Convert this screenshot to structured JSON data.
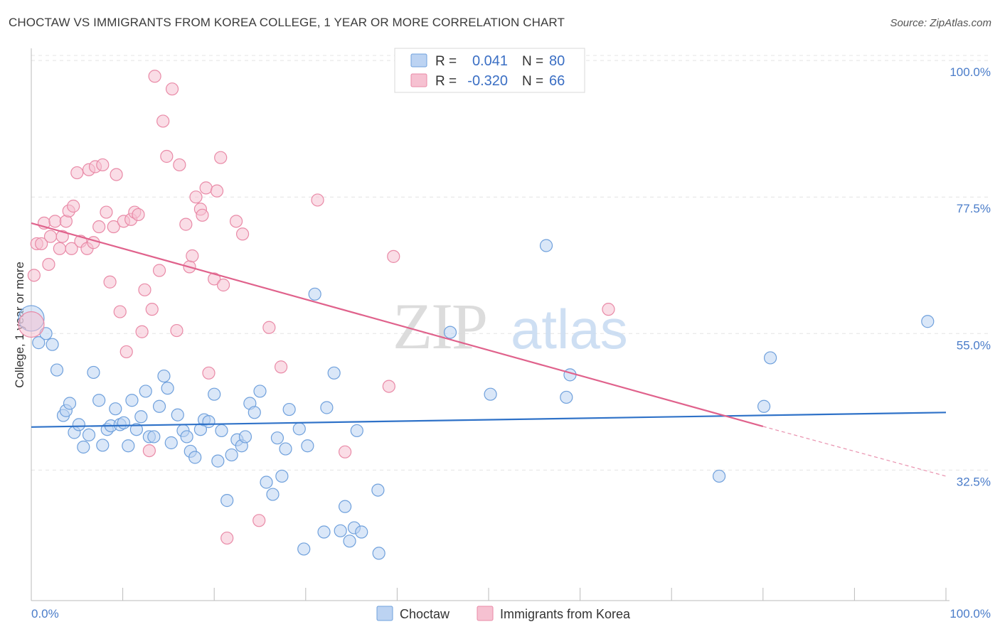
{
  "chart_data": {
    "type": "scatter",
    "title": "CHOCTAW VS IMMIGRANTS FROM KOREA COLLEGE, 1 YEAR OR MORE CORRELATION CHART",
    "source": "Source: ZipAtlas.com",
    "xlabel": "",
    "ylabel": "College, 1 year or more",
    "xlim": [
      0,
      100
    ],
    "ylim": [
      11,
      102
    ],
    "x_tick_labels": [
      "0.0%",
      "100.0%"
    ],
    "y_ticks": [
      {
        "value": 100.0,
        "label": "100.0%"
      },
      {
        "value": 77.5,
        "label": "77.5%"
      },
      {
        "value": 55.0,
        "label": "55.0%"
      },
      {
        "value": 32.5,
        "label": "32.5%"
      }
    ],
    "watermark": {
      "part1": "ZIP",
      "part2": "atlas"
    },
    "legend": {
      "r_label": "R =",
      "n_label": "N =",
      "entries": [
        {
          "r": "0.041",
          "n": "80"
        },
        {
          "r": "-0.320",
          "n": "66"
        }
      ]
    },
    "series": [
      {
        "name": "Choctaw",
        "color": "#6fa0dc",
        "fill": "#bcd3f2",
        "line_color": "#2f72c8",
        "trend": {
          "x0": 0,
          "y0": 39.6,
          "x1": 100,
          "y1": 42.0
        },
        "points": [
          [
            0,
            57.5
          ],
          [
            0.8,
            53.5
          ],
          [
            1.6,
            55.0
          ],
          [
            2.3,
            53.2
          ],
          [
            2.8,
            49.0
          ],
          [
            3.5,
            41.5
          ],
          [
            3.8,
            42.3
          ],
          [
            4.2,
            43.5
          ],
          [
            4.7,
            38.7
          ],
          [
            5.2,
            40.0
          ],
          [
            5.7,
            36.3
          ],
          [
            6.3,
            38.3
          ],
          [
            6.8,
            48.6
          ],
          [
            7.4,
            44.0
          ],
          [
            7.8,
            36.6
          ],
          [
            8.3,
            39.2
          ],
          [
            8.7,
            39.8
          ],
          [
            9.2,
            42.6
          ],
          [
            9.7,
            40.0
          ],
          [
            10.1,
            40.3
          ],
          [
            10.6,
            36.5
          ],
          [
            11.0,
            44.0
          ],
          [
            11.5,
            39.2
          ],
          [
            12.0,
            41.3
          ],
          [
            12.5,
            45.5
          ],
          [
            12.9,
            38.0
          ],
          [
            13.4,
            38.0
          ],
          [
            14.0,
            43.0
          ],
          [
            14.5,
            48.0
          ],
          [
            14.9,
            46.0
          ],
          [
            15.3,
            37.0
          ],
          [
            16.0,
            41.6
          ],
          [
            16.6,
            39.0
          ],
          [
            17.0,
            38.0
          ],
          [
            17.4,
            35.6
          ],
          [
            17.9,
            34.6
          ],
          [
            18.5,
            39.2
          ],
          [
            18.9,
            40.8
          ],
          [
            19.4,
            40.5
          ],
          [
            20.0,
            45.0
          ],
          [
            20.4,
            34.0
          ],
          [
            20.8,
            39.0
          ],
          [
            21.4,
            27.5
          ],
          [
            21.9,
            35.0
          ],
          [
            22.5,
            37.5
          ],
          [
            23.0,
            36.5
          ],
          [
            23.4,
            38.0
          ],
          [
            23.9,
            43.5
          ],
          [
            24.4,
            42.0
          ],
          [
            25.0,
            45.5
          ],
          [
            25.7,
            30.5
          ],
          [
            26.4,
            28.5
          ],
          [
            26.9,
            37.8
          ],
          [
            27.4,
            31.5
          ],
          [
            27.8,
            36.0
          ],
          [
            28.2,
            42.5
          ],
          [
            29.3,
            39.3
          ],
          [
            29.8,
            19.5
          ],
          [
            30.2,
            36.5
          ],
          [
            31.0,
            61.5
          ],
          [
            32.0,
            22.3
          ],
          [
            32.3,
            42.8
          ],
          [
            33.1,
            48.5
          ],
          [
            33.8,
            22.5
          ],
          [
            34.3,
            26.5
          ],
          [
            34.8,
            20.8
          ],
          [
            35.6,
            39.0
          ],
          [
            35.3,
            23.0
          ],
          [
            36.1,
            22.3
          ],
          [
            37.9,
            29.2
          ],
          [
            38.0,
            18.8
          ],
          [
            45.8,
            55.2
          ],
          [
            50.2,
            45.0
          ],
          [
            56.3,
            69.5
          ],
          [
            58.5,
            44.5
          ],
          [
            58.9,
            48.2
          ],
          [
            75.2,
            31.5
          ],
          [
            80.1,
            43.0
          ],
          [
            80.8,
            51.0
          ],
          [
            98.0,
            57.0
          ]
        ]
      },
      {
        "name": "Immigrants from Korea",
        "color": "#e98aa7",
        "fill": "#f6c1d1",
        "line_color": "#e0628c",
        "trend": {
          "x0": 0,
          "y0": 73.2,
          "x1": 80,
          "y1": 39.7
        },
        "trend_dash": {
          "x0": 80,
          "y0": 39.7,
          "x1": 100,
          "y1": 31.5
        },
        "points": [
          [
            0,
            56.5
          ],
          [
            0.3,
            64.6
          ],
          [
            0.6,
            69.8
          ],
          [
            1.1,
            69.8
          ],
          [
            1.4,
            73.2
          ],
          [
            1.9,
            66.4
          ],
          [
            2.1,
            71.0
          ],
          [
            2.6,
            73.5
          ],
          [
            3.1,
            69.0
          ],
          [
            3.4,
            71.0
          ],
          [
            3.8,
            73.5
          ],
          [
            4.1,
            75.2
          ],
          [
            4.4,
            69.0
          ],
          [
            4.6,
            76.0
          ],
          [
            5.0,
            81.5
          ],
          [
            5.4,
            70.2
          ],
          [
            6.1,
            69.0
          ],
          [
            6.3,
            82.0
          ],
          [
            6.8,
            70.0
          ],
          [
            7.0,
            82.5
          ],
          [
            7.4,
            72.6
          ],
          [
            7.8,
            82.8
          ],
          [
            8.2,
            75.0
          ],
          [
            8.6,
            63.5
          ],
          [
            9.0,
            72.6
          ],
          [
            9.3,
            81.2
          ],
          [
            9.7,
            58.6
          ],
          [
            10.1,
            73.5
          ],
          [
            10.4,
            52.0
          ],
          [
            10.9,
            73.8
          ],
          [
            11.3,
            75.0
          ],
          [
            11.7,
            74.6
          ],
          [
            12.1,
            55.3
          ],
          [
            12.4,
            62.2
          ],
          [
            12.9,
            35.7
          ],
          [
            13.2,
            59.0
          ],
          [
            13.5,
            97.4
          ],
          [
            14.0,
            65.4
          ],
          [
            14.4,
            90.0
          ],
          [
            14.8,
            84.2
          ],
          [
            15.4,
            95.3
          ],
          [
            15.9,
            55.5
          ],
          [
            16.2,
            82.8
          ],
          [
            16.9,
            73.0
          ],
          [
            17.3,
            66.0
          ],
          [
            17.6,
            67.8
          ],
          [
            18.0,
            77.5
          ],
          [
            18.5,
            75.5
          ],
          [
            18.7,
            74.5
          ],
          [
            19.1,
            79.0
          ],
          [
            19.4,
            48.5
          ],
          [
            20.0,
            64.0
          ],
          [
            20.3,
            78.5
          ],
          [
            20.7,
            84.0
          ],
          [
            21.0,
            63.0
          ],
          [
            21.4,
            21.3
          ],
          [
            22.4,
            73.5
          ],
          [
            23.1,
            71.4
          ],
          [
            24.9,
            24.2
          ],
          [
            26.0,
            56.0
          ],
          [
            27.3,
            49.5
          ],
          [
            31.3,
            77.0
          ],
          [
            34.3,
            35.5
          ],
          [
            39.1,
            46.3
          ],
          [
            39.6,
            67.7
          ],
          [
            63.1,
            59.0
          ]
        ]
      }
    ]
  },
  "bottom_legend": [
    {
      "label": "Choctaw"
    },
    {
      "label": "Immigrants from Korea"
    }
  ]
}
